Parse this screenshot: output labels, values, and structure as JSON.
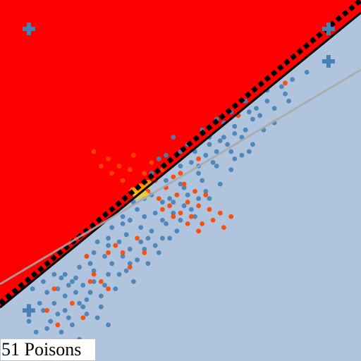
{
  "chart_data": {
    "type": "scatter",
    "caption": "51 Poisons",
    "xlim": [
      0,
      1
    ],
    "ylim": [
      0,
      1
    ],
    "grid": false,
    "axes_visible": false,
    "regions": [
      {
        "role": "upper-left",
        "color": "#ff0000"
      },
      {
        "role": "lower-right",
        "color": "#b0c4de"
      }
    ],
    "colors": {
      "class_a": "#4682b4",
      "class_b": "#ff4500",
      "poison_marker": "#4682b4",
      "overlap_glow": "#ffd700",
      "boundary": "#000000",
      "gray_line": "#a9a9a9"
    },
    "lines": [
      {
        "role": "clean-boundary",
        "style": "solid",
        "color": "#000000",
        "points": [
          [
            0.0,
            0.148
          ],
          [
            1.0,
            0.965
          ]
        ]
      },
      {
        "role": "poisoned-boundary",
        "style": "dashed",
        "color": "#000000",
        "points": [
          [
            0.0,
            0.16
          ],
          [
            1.0,
            1.0
          ]
        ]
      },
      {
        "role": "gray-fit",
        "style": "solid",
        "color": "#a9a9a9",
        "points": [
          [
            0.0,
            0.213
          ],
          [
            1.0,
            0.807
          ]
        ]
      }
    ],
    "series": [
      {
        "marker": "dot",
        "color": "#4682b4",
        "points": [
          [
            0.2,
            0.22
          ],
          [
            0.25,
            0.27
          ],
          [
            0.3,
            0.32
          ],
          [
            0.35,
            0.35
          ],
          [
            0.4,
            0.4
          ],
          [
            0.45,
            0.44
          ],
          [
            0.5,
            0.49
          ],
          [
            0.55,
            0.54
          ],
          [
            0.6,
            0.58
          ],
          [
            0.65,
            0.63
          ],
          [
            0.7,
            0.67
          ],
          [
            0.74,
            0.72
          ],
          [
            0.78,
            0.76
          ],
          [
            0.8,
            0.72
          ],
          [
            0.76,
            0.66
          ],
          [
            0.7,
            0.6
          ],
          [
            0.65,
            0.56
          ],
          [
            0.62,
            0.62
          ],
          [
            0.58,
            0.6
          ],
          [
            0.56,
            0.5
          ],
          [
            0.52,
            0.46
          ],
          [
            0.48,
            0.44
          ],
          [
            0.46,
            0.38
          ],
          [
            0.42,
            0.36
          ],
          [
            0.4,
            0.31
          ],
          [
            0.38,
            0.28
          ],
          [
            0.35,
            0.25
          ],
          [
            0.32,
            0.2
          ],
          [
            0.3,
            0.24
          ],
          [
            0.28,
            0.18
          ],
          [
            0.26,
            0.22
          ],
          [
            0.24,
            0.17
          ],
          [
            0.22,
            0.16
          ],
          [
            0.18,
            0.18
          ],
          [
            0.15,
            0.16
          ],
          [
            0.14,
            0.11
          ],
          [
            0.18,
            0.14
          ],
          [
            0.2,
            0.1
          ],
          [
            0.24,
            0.13
          ],
          [
            0.28,
            0.15
          ],
          [
            0.3,
            0.1
          ],
          [
            0.08,
            0.11
          ],
          [
            0.1,
            0.08
          ],
          [
            0.12,
            0.14
          ],
          [
            0.16,
            0.2
          ],
          [
            0.18,
            0.24
          ],
          [
            0.22,
            0.26
          ],
          [
            0.26,
            0.3
          ],
          [
            0.3,
            0.34
          ],
          [
            0.34,
            0.38
          ],
          [
            0.38,
            0.42
          ],
          [
            0.42,
            0.46
          ],
          [
            0.46,
            0.5
          ],
          [
            0.5,
            0.54
          ],
          [
            0.54,
            0.58
          ],
          [
            0.58,
            0.62
          ],
          [
            0.62,
            0.66
          ],
          [
            0.66,
            0.68
          ],
          [
            0.68,
            0.64
          ],
          [
            0.64,
            0.58
          ],
          [
            0.6,
            0.54
          ],
          [
            0.57,
            0.47
          ],
          [
            0.53,
            0.42
          ],
          [
            0.5,
            0.39
          ],
          [
            0.47,
            0.34
          ],
          [
            0.44,
            0.3
          ],
          [
            0.41,
            0.27
          ],
          [
            0.37,
            0.22
          ],
          [
            0.34,
            0.29
          ],
          [
            0.31,
            0.27
          ],
          [
            0.27,
            0.33
          ],
          [
            0.24,
            0.29
          ],
          [
            0.33,
            0.33
          ],
          [
            0.36,
            0.39
          ],
          [
            0.39,
            0.37
          ],
          [
            0.43,
            0.41
          ],
          [
            0.47,
            0.45
          ],
          [
            0.51,
            0.48
          ],
          [
            0.55,
            0.52
          ],
          [
            0.59,
            0.55
          ],
          [
            0.63,
            0.6
          ],
          [
            0.67,
            0.62
          ],
          [
            0.71,
            0.7
          ],
          [
            0.73,
            0.64
          ],
          [
            0.69,
            0.58
          ],
          [
            0.61,
            0.49
          ],
          [
            0.58,
            0.45
          ],
          [
            0.54,
            0.4
          ],
          [
            0.49,
            0.36
          ],
          [
            0.45,
            0.34
          ],
          [
            0.43,
            0.32
          ],
          [
            0.39,
            0.33
          ],
          [
            0.36,
            0.31
          ],
          [
            0.4,
            0.45
          ],
          [
            0.37,
            0.44
          ],
          [
            0.34,
            0.4
          ],
          [
            0.31,
            0.37
          ],
          [
            0.29,
            0.29
          ],
          [
            0.26,
            0.25
          ],
          [
            0.23,
            0.21
          ],
          [
            0.21,
            0.19
          ],
          [
            0.19,
            0.21
          ],
          [
            0.17,
            0.23
          ],
          [
            0.13,
            0.19
          ],
          [
            0.11,
            0.16
          ],
          [
            0.09,
            0.2
          ],
          [
            0.12,
            0.22
          ],
          [
            0.15,
            0.24
          ],
          [
            0.44,
            0.56
          ],
          [
            0.48,
            0.62
          ],
          [
            0.52,
            0.6
          ],
          [
            0.56,
            0.64
          ],
          [
            0.6,
            0.67
          ],
          [
            0.64,
            0.69
          ],
          [
            0.74,
            0.75
          ],
          [
            0.68,
            0.72
          ],
          [
            0.81,
            0.78
          ],
          [
            0.85,
            0.8
          ],
          [
            0.64,
            0.53
          ],
          [
            0.67,
            0.57
          ],
          [
            0.55,
            0.45
          ],
          [
            0.51,
            0.43
          ],
          [
            0.48,
            0.41
          ],
          [
            0.45,
            0.39
          ],
          [
            0.41,
            0.34
          ],
          [
            0.36,
            0.27
          ],
          [
            0.33,
            0.24
          ],
          [
            0.29,
            0.21
          ],
          [
            0.25,
            0.19
          ],
          [
            0.21,
            0.23
          ],
          [
            0.19,
            0.12
          ],
          [
            0.23,
            0.15
          ],
          [
            0.27,
            0.12
          ],
          [
            0.16,
            0.13
          ],
          [
            0.13,
            0.09
          ],
          [
            0.08,
            0.14
          ],
          [
            0.17,
            0.08
          ],
          [
            0.22,
            0.06
          ],
          [
            0.42,
            0.52
          ],
          [
            0.46,
            0.57
          ],
          [
            0.5,
            0.58
          ],
          [
            0.53,
            0.55
          ],
          [
            0.57,
            0.57
          ],
          [
            0.61,
            0.61
          ],
          [
            0.65,
            0.65
          ],
          [
            0.69,
            0.69
          ],
          [
            0.72,
            0.68
          ],
          [
            0.76,
            0.7
          ],
          [
            0.79,
            0.74
          ]
        ]
      },
      {
        "marker": "dot",
        "color": "#ff4500",
        "points": [
          [
            0.26,
            0.58
          ],
          [
            0.3,
            0.56
          ],
          [
            0.33,
            0.54
          ],
          [
            0.36,
            0.53
          ],
          [
            0.4,
            0.52
          ],
          [
            0.43,
            0.5
          ],
          [
            0.46,
            0.48
          ],
          [
            0.49,
            0.46
          ],
          [
            0.52,
            0.44
          ],
          [
            0.55,
            0.43
          ],
          [
            0.58,
            0.42
          ],
          [
            0.61,
            0.41
          ],
          [
            0.38,
            0.48
          ],
          [
            0.41,
            0.47
          ],
          [
            0.44,
            0.45
          ],
          [
            0.47,
            0.43
          ],
          [
            0.5,
            0.41
          ],
          [
            0.53,
            0.4
          ],
          [
            0.56,
            0.38
          ],
          [
            0.59,
            0.39
          ],
          [
            0.62,
            0.37
          ],
          [
            0.42,
            0.55
          ],
          [
            0.45,
            0.53
          ],
          [
            0.48,
            0.51
          ],
          [
            0.51,
            0.49
          ],
          [
            0.54,
            0.47
          ],
          [
            0.57,
            0.46
          ],
          [
            0.34,
            0.5
          ],
          [
            0.37,
            0.57
          ],
          [
            0.31,
            0.52
          ],
          [
            0.28,
            0.54
          ],
          [
            0.64,
            0.4
          ],
          [
            0.52,
            0.38
          ],
          [
            0.48,
            0.4
          ],
          [
            0.45,
            0.42
          ],
          [
            0.55,
            0.36
          ],
          [
            0.36,
            0.26
          ],
          [
            0.32,
            0.32
          ],
          [
            0.28,
            0.22
          ],
          [
            0.24,
            0.29
          ],
          [
            0.2,
            0.16
          ],
          [
            0.16,
            0.1
          ],
          [
            0.13,
            0.14
          ],
          [
            0.3,
            0.2
          ],
          [
            0.26,
            0.24
          ],
          [
            0.38,
            0.34
          ],
          [
            0.34,
            0.3
          ],
          [
            0.15,
            0.2
          ],
          [
            0.25,
            0.22
          ],
          [
            0.3,
            0.3
          ],
          [
            0.79,
            0.77
          ],
          [
            0.66,
            0.68
          ],
          [
            0.55,
            0.56
          ],
          [
            0.5,
            0.52
          ],
          [
            0.23,
            0.12
          ],
          [
            0.4,
            0.3
          ]
        ]
      },
      {
        "marker": "glow",
        "color": "#ffd700",
        "points": [
          [
            0.37,
            0.47
          ],
          [
            0.39,
            0.48
          ],
          [
            0.41,
            0.49
          ],
          [
            0.38,
            0.46
          ],
          [
            0.4,
            0.46
          ]
        ]
      },
      {
        "marker": "plus",
        "color": "#4682b4",
        "points": [
          [
            0.08,
            0.92
          ],
          [
            0.91,
            0.92
          ],
          [
            0.91,
            0.83
          ],
          [
            0.08,
            0.14
          ]
        ]
      }
    ]
  }
}
